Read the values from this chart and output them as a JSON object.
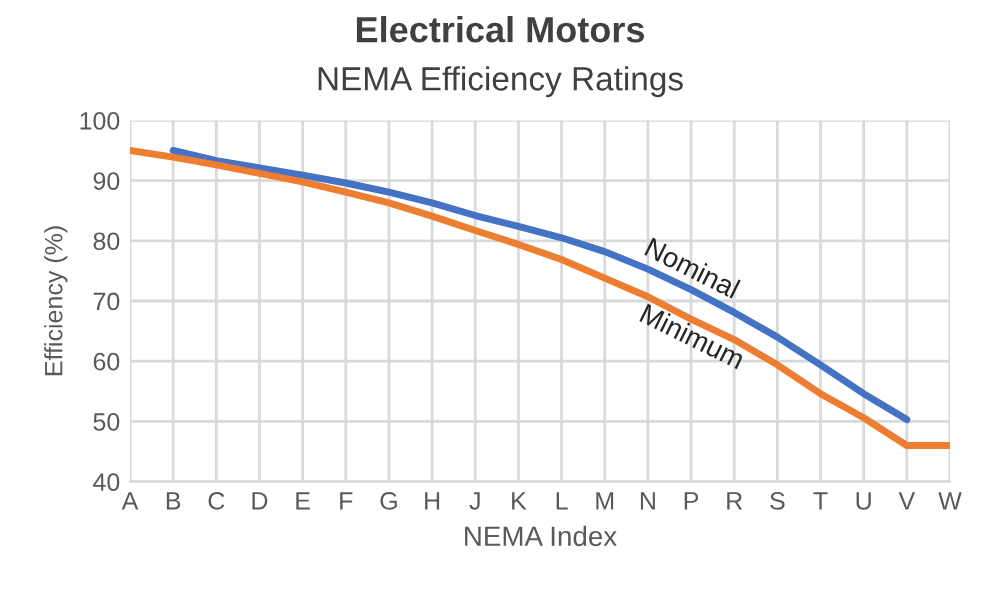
{
  "chart_data": {
    "type": "line",
    "title": "Electrical Motors",
    "subtitle": "NEMA Efficiency Ratings",
    "xlabel": "NEMA Index",
    "ylabel": "Efficiency (%)",
    "categories": [
      "A",
      "B",
      "C",
      "D",
      "E",
      "F",
      "G",
      "H",
      "J",
      "K",
      "L",
      "M",
      "N",
      "P",
      "R",
      "S",
      "T",
      "U",
      "V",
      "W"
    ],
    "series": [
      {
        "name": "Nominal",
        "color": "#4472c4",
        "values": [
          null,
          95,
          93.3,
          92.1,
          90.9,
          89.6,
          88.1,
          86.3,
          84.2,
          82.4,
          80.5,
          78.2,
          75.3,
          71.9,
          68.1,
          64.0,
          59.4,
          54.6,
          50.3,
          null
        ]
      },
      {
        "name": "Minimum",
        "color": "#ed7d31",
        "values": [
          95,
          93.9,
          92.6,
          91.2,
          89.8,
          88.1,
          86.3,
          84.1,
          81.7,
          79.4,
          76.9,
          73.8,
          70.7,
          67.0,
          63.6,
          59.4,
          54.6,
          50.6,
          46.0,
          46.0
        ]
      }
    ],
    "ylim": [
      40,
      100
    ],
    "yticks": [
      40,
      50,
      60,
      70,
      80,
      90,
      100
    ],
    "grid": true,
    "legend": false,
    "marker": "none",
    "line_style": "solid"
  }
}
